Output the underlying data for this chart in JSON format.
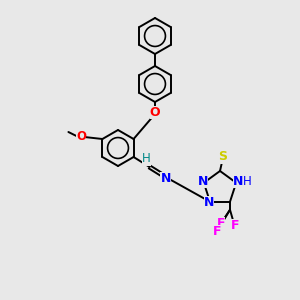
{
  "bg_color": "#e8e8e8",
  "bond_color": "#000000",
  "atom_colors": {
    "O": "#ff0000",
    "N": "#0000ff",
    "S": "#cccc00",
    "F": "#ff00ff",
    "H_cyan": "#008888"
  },
  "ring_r": 18,
  "lw": 1.4
}
